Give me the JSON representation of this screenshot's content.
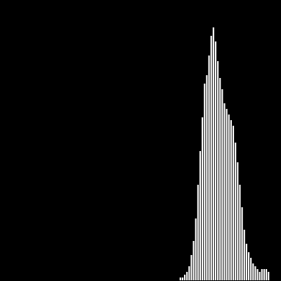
{
  "chart_data": {
    "type": "bar",
    "subtype": "histogram",
    "title": "",
    "xlabel": "",
    "ylabel": "",
    "axes_visible": false,
    "grid": false,
    "legend": "none",
    "xlim": [
      0,
      255
    ],
    "ylim": [
      0,
      100
    ],
    "bin_start": 147,
    "bin_width": 2,
    "values": [
      0,
      0,
      0,
      0,
      0,
      0,
      0,
      0,
      1,
      1,
      2,
      3,
      5,
      9,
      14,
      22,
      34,
      46,
      58,
      70,
      73,
      80,
      87,
      90,
      85,
      78,
      72,
      68,
      63,
      61,
      59,
      57,
      55,
      49,
      42,
      34,
      26,
      18,
      13,
      10,
      8,
      6,
      5,
      4,
      3,
      4,
      4,
      4,
      3
    ],
    "bar_color": "#ffffff",
    "background_color": "#000000"
  }
}
